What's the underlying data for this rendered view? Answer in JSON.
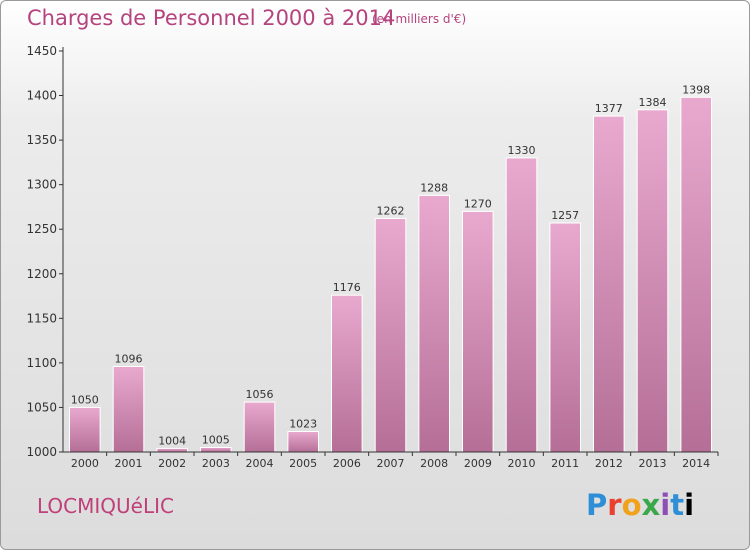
{
  "title": "Charges de Personnel 2000 à 2014",
  "subtitle": "(en milliers d'€)",
  "commune": "LOCMIQUéLIC",
  "logo": {
    "letters": [
      "P",
      "r",
      "o",
      "x",
      "i",
      "t",
      "i"
    ]
  },
  "colors": {
    "bar_top": "#e9a9cf",
    "bar_bottom": "#b56f97",
    "title": "#b5437e",
    "axis": "#333333"
  },
  "chart_data": {
    "type": "bar",
    "categories": [
      "2000",
      "2001",
      "2002",
      "2003",
      "2004",
      "2005",
      "2006",
      "2007",
      "2008",
      "2009",
      "2010",
      "2011",
      "2012",
      "2013",
      "2014"
    ],
    "values": [
      1050,
      1096,
      1004,
      1005,
      1056,
      1023,
      1176,
      1262,
      1288,
      1270,
      1330,
      1257,
      1377,
      1384,
      1398
    ],
    "ylim": [
      1000,
      1450
    ],
    "yticks": [
      1000,
      1050,
      1100,
      1150,
      1200,
      1250,
      1300,
      1350,
      1400,
      1450
    ],
    "grid": false,
    "data_labels": true
  }
}
